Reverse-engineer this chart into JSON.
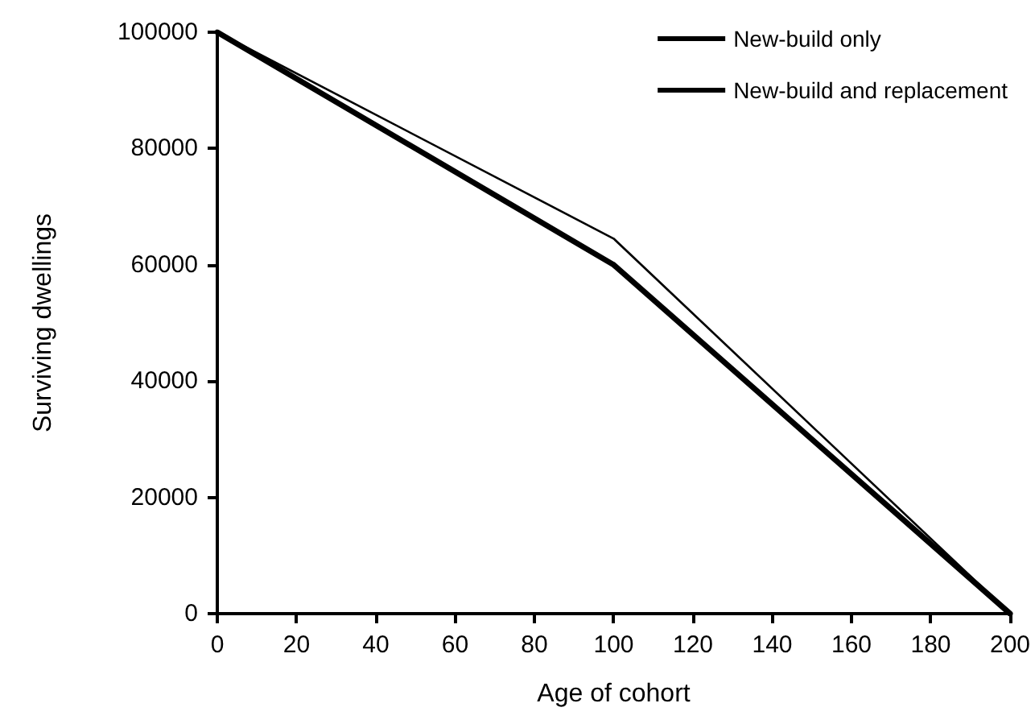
{
  "chart_data": {
    "type": "line",
    "xlabel": "Age of cohort",
    "ylabel": "Surviving dwellings",
    "x": [
      0,
      100,
      200
    ],
    "series": [
      {
        "name": "New-build only",
        "color": "#000000",
        "values": [
          100000,
          60000,
          0
        ]
      },
      {
        "name": "New-build and replacement",
        "color": "#000000",
        "values": [
          100000,
          64500,
          0
        ]
      }
    ],
    "xlim": [
      0,
      200
    ],
    "xticks": [
      0,
      20,
      40,
      60,
      80,
      100,
      120,
      140,
      160,
      180,
      200
    ],
    "ylim": [
      0,
      100000
    ],
    "yticks": [
      0,
      20000,
      40000,
      60000,
      80000,
      100000
    ],
    "grid": false,
    "legend": "top right",
    "marker": "none",
    "line_style": "solid"
  }
}
